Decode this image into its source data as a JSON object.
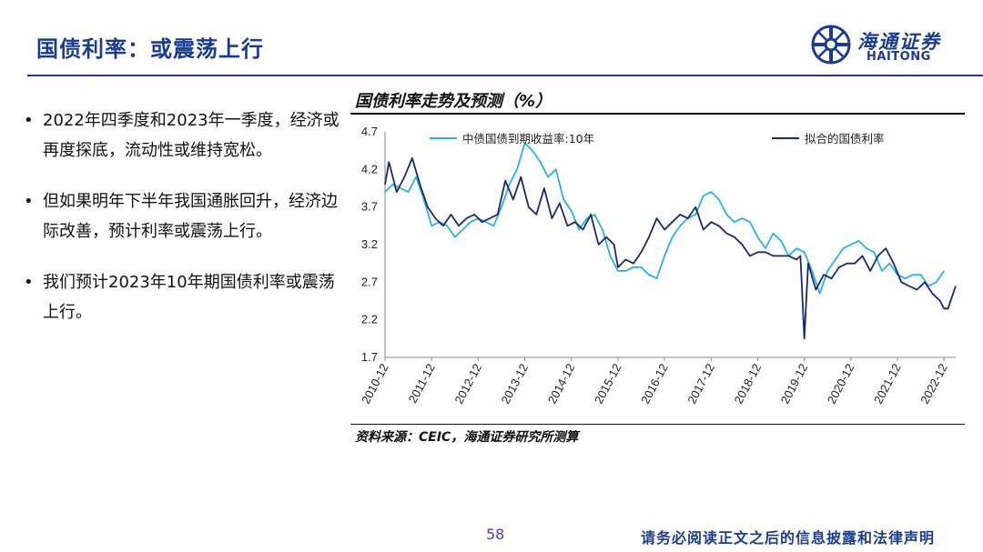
{
  "header": {
    "title": "国债利率：或震荡上行",
    "logo_cn": "海通证券",
    "logo_en": "HAITONG"
  },
  "bullets": [
    "2022年四季度和2023年一季度，经济或再度探底，流动性或维持宽松。",
    "但如果明年下半年我国通胀回升，经济边际改善，预计利率或震荡上行。",
    "我们预计2023年10年期国债利率或震荡上行。"
  ],
  "chart_title": "国债利率走势及预测（%）",
  "source": "资料来源：CEIC，海通证券研究所测算",
  "footer": {
    "page": "58",
    "disclaimer": "请务必阅读正文之后的信息披露和法律声明"
  },
  "colors": {
    "brand": "#1b3d8f",
    "actual_series": "#2bb0e8",
    "fitted_series": "#1b2a6b"
  },
  "chart_data": {
    "type": "line",
    "title": "国债利率走势及预测（%）",
    "x_ticks": [
      "2010-12",
      "2011-12",
      "2012-12",
      "2013-12",
      "2014-12",
      "2015-12",
      "2016-12",
      "2017-12",
      "2018-12",
      "2019-12",
      "2020-12",
      "2021-12",
      "2022-12"
    ],
    "y_ticks": [
      "4.7",
      "4.2",
      "3.7",
      "3.2",
      "2.7",
      "2.2",
      "1.7"
    ],
    "ylim": [
      1.7,
      4.7
    ],
    "xlim": [
      "2010-12",
      "2023-03"
    ],
    "legend_position": "top",
    "grid": false,
    "series": [
      {
        "name": "中债国债到期收益率:10年",
        "color": "#2bb0e8",
        "points": [
          [
            "2010-12",
            3.9
          ],
          [
            "2011-02",
            4.0
          ],
          [
            "2011-04",
            3.95
          ],
          [
            "2011-06",
            3.9
          ],
          [
            "2011-08",
            4.1
          ],
          [
            "2011-10",
            3.8
          ],
          [
            "2011-12",
            3.45
          ],
          [
            "2012-02",
            3.5
          ],
          [
            "2012-04",
            3.45
          ],
          [
            "2012-06",
            3.3
          ],
          [
            "2012-08",
            3.4
          ],
          [
            "2012-10",
            3.5
          ],
          [
            "2012-12",
            3.55
          ],
          [
            "2013-02",
            3.5
          ],
          [
            "2013-04",
            3.45
          ],
          [
            "2013-06",
            3.7
          ],
          [
            "2013-08",
            4.0
          ],
          [
            "2013-10",
            4.2
          ],
          [
            "2013-12",
            4.55
          ],
          [
            "2014-02",
            4.45
          ],
          [
            "2014-04",
            4.3
          ],
          [
            "2014-06",
            4.1
          ],
          [
            "2014-08",
            4.2
          ],
          [
            "2014-10",
            3.8
          ],
          [
            "2014-12",
            3.65
          ],
          [
            "2015-02",
            3.4
          ],
          [
            "2015-04",
            3.55
          ],
          [
            "2015-06",
            3.6
          ],
          [
            "2015-08",
            3.4
          ],
          [
            "2015-10",
            3.05
          ],
          [
            "2015-12",
            2.85
          ],
          [
            "2016-02",
            2.85
          ],
          [
            "2016-04",
            2.9
          ],
          [
            "2016-06",
            2.9
          ],
          [
            "2016-08",
            2.8
          ],
          [
            "2016-10",
            2.75
          ],
          [
            "2016-12",
            3.05
          ],
          [
            "2017-02",
            3.3
          ],
          [
            "2017-04",
            3.45
          ],
          [
            "2017-06",
            3.55
          ],
          [
            "2017-08",
            3.6
          ],
          [
            "2017-10",
            3.85
          ],
          [
            "2017-12",
            3.9
          ],
          [
            "2018-02",
            3.8
          ],
          [
            "2018-04",
            3.6
          ],
          [
            "2018-06",
            3.5
          ],
          [
            "2018-08",
            3.55
          ],
          [
            "2018-10",
            3.5
          ],
          [
            "2018-12",
            3.3
          ],
          [
            "2019-02",
            3.15
          ],
          [
            "2019-04",
            3.35
          ],
          [
            "2019-06",
            3.25
          ],
          [
            "2019-08",
            3.05
          ],
          [
            "2019-10",
            3.15
          ],
          [
            "2019-12",
            3.1
          ],
          [
            "2020-02",
            2.85
          ],
          [
            "2020-04",
            2.55
          ],
          [
            "2020-06",
            2.85
          ],
          [
            "2020-08",
            3.0
          ],
          [
            "2020-10",
            3.15
          ],
          [
            "2020-12",
            3.2
          ],
          [
            "2021-02",
            3.25
          ],
          [
            "2021-04",
            3.15
          ],
          [
            "2021-06",
            3.1
          ],
          [
            "2021-08",
            2.85
          ],
          [
            "2021-10",
            2.95
          ],
          [
            "2021-12",
            2.8
          ],
          [
            "2022-02",
            2.75
          ],
          [
            "2022-04",
            2.8
          ],
          [
            "2022-06",
            2.8
          ],
          [
            "2022-08",
            2.65
          ],
          [
            "2022-10",
            2.7
          ],
          [
            "2022-12",
            2.85
          ]
        ]
      },
      {
        "name": "拟合的国债利率",
        "color": "#1b2a6b",
        "points": [
          [
            "2010-12",
            4.0
          ],
          [
            "2011-01",
            4.3
          ],
          [
            "2011-03",
            3.9
          ],
          [
            "2011-05",
            4.1
          ],
          [
            "2011-07",
            4.35
          ],
          [
            "2011-09",
            4.0
          ],
          [
            "2011-11",
            3.7
          ],
          [
            "2012-01",
            3.55
          ],
          [
            "2012-03",
            3.45
          ],
          [
            "2012-05",
            3.6
          ],
          [
            "2012-07",
            3.45
          ],
          [
            "2012-09",
            3.55
          ],
          [
            "2012-11",
            3.6
          ],
          [
            "2013-01",
            3.5
          ],
          [
            "2013-03",
            3.55
          ],
          [
            "2013-05",
            3.6
          ],
          [
            "2013-07",
            4.05
          ],
          [
            "2013-09",
            3.8
          ],
          [
            "2013-11",
            4.1
          ],
          [
            "2014-01",
            3.7
          ],
          [
            "2014-03",
            3.6
          ],
          [
            "2014-05",
            3.95
          ],
          [
            "2014-07",
            3.55
          ],
          [
            "2014-09",
            3.75
          ],
          [
            "2014-11",
            3.45
          ],
          [
            "2015-01",
            3.5
          ],
          [
            "2015-03",
            3.4
          ],
          [
            "2015-05",
            3.6
          ],
          [
            "2015-07",
            3.2
          ],
          [
            "2015-09",
            3.3
          ],
          [
            "2015-11",
            3.2
          ],
          [
            "2015-12",
            2.9
          ],
          [
            "2016-02",
            3.0
          ],
          [
            "2016-04",
            2.95
          ],
          [
            "2016-06",
            3.1
          ],
          [
            "2016-08",
            3.3
          ],
          [
            "2016-10",
            3.55
          ],
          [
            "2016-12",
            3.4
          ],
          [
            "2017-02",
            3.5
          ],
          [
            "2017-04",
            3.6
          ],
          [
            "2017-06",
            3.55
          ],
          [
            "2017-08",
            3.7
          ],
          [
            "2017-10",
            3.4
          ],
          [
            "2017-12",
            3.5
          ],
          [
            "2018-02",
            3.45
          ],
          [
            "2018-04",
            3.35
          ],
          [
            "2018-06",
            3.3
          ],
          [
            "2018-08",
            3.2
          ],
          [
            "2018-10",
            3.05
          ],
          [
            "2018-12",
            3.1
          ],
          [
            "2019-02",
            3.1
          ],
          [
            "2019-04",
            3.05
          ],
          [
            "2019-06",
            3.05
          ],
          [
            "2019-08",
            3.05
          ],
          [
            "2019-10",
            3.0
          ],
          [
            "2019-11",
            3.05
          ],
          [
            "2019-12",
            1.95
          ],
          [
            "2020-01",
            2.95
          ],
          [
            "2020-03",
            2.6
          ],
          [
            "2020-05",
            2.8
          ],
          [
            "2020-07",
            2.75
          ],
          [
            "2020-09",
            2.9
          ],
          [
            "2020-11",
            2.95
          ],
          [
            "2021-01",
            2.95
          ],
          [
            "2021-03",
            3.05
          ],
          [
            "2021-05",
            2.85
          ],
          [
            "2021-07",
            3.05
          ],
          [
            "2021-09",
            3.15
          ],
          [
            "2021-11",
            2.95
          ],
          [
            "2022-01",
            2.7
          ],
          [
            "2022-03",
            2.65
          ],
          [
            "2022-05",
            2.6
          ],
          [
            "2022-07",
            2.7
          ],
          [
            "2022-09",
            2.55
          ],
          [
            "2022-11",
            2.45
          ],
          [
            "2022-12",
            2.35
          ],
          [
            "2023-01",
            2.35
          ],
          [
            "2023-03",
            2.65
          ]
        ]
      }
    ]
  }
}
